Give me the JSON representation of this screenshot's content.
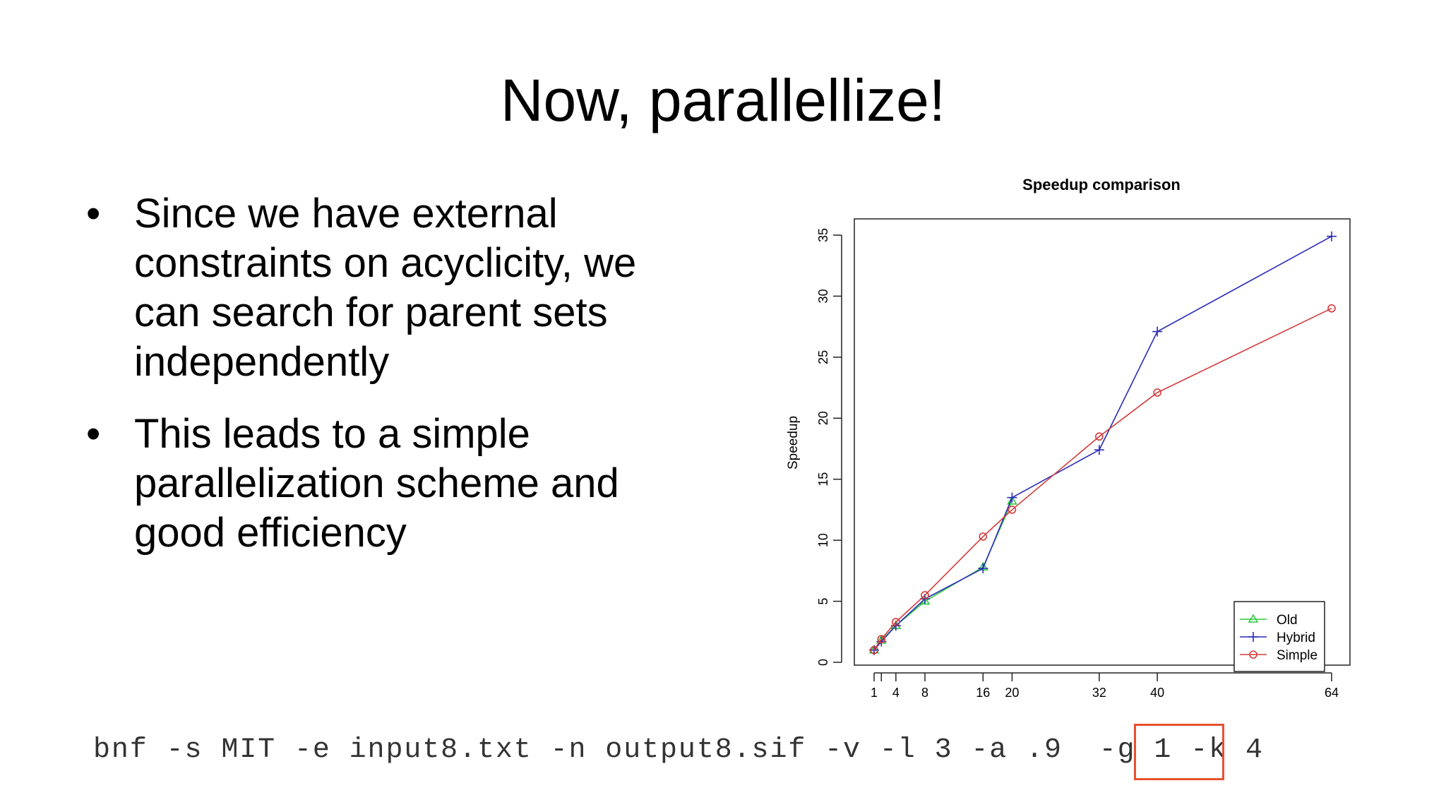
{
  "slide": {
    "title": "Now, parallellize!",
    "bullets": [
      "Since we have external constraints on acyclicity, we can search for parent sets independently",
      "This leads to a  simple parallelization scheme and good efficiency"
    ],
    "bullet_glyph": "•",
    "command": {
      "text": "bnf -s MIT -e input8.txt -n output8.sif -v -l 3 -a .9  -g 1 -k 4",
      "highlighted_part": "-k 4",
      "highlight_color": "#e8512f"
    }
  },
  "chart_data": {
    "type": "line",
    "title": "Speedup comparison",
    "xlabel": "",
    "ylabel": "Speedup",
    "x_ticks": [
      1,
      4,
      8,
      16,
      20,
      32,
      40,
      64
    ],
    "y_ticks": [
      0,
      5,
      10,
      15,
      20,
      25,
      30,
      35
    ],
    "xlim": [
      1,
      64
    ],
    "ylim": [
      0,
      35
    ],
    "grid": false,
    "legend_position": "bottom-right",
    "series": [
      {
        "name": "Old",
        "color": "#2ecc40",
        "marker": "triangle",
        "x": [
          1,
          2,
          4,
          8,
          16,
          20
        ],
        "y": [
          1.0,
          1.8,
          3.0,
          5.0,
          7.8,
          13.2
        ]
      },
      {
        "name": "Hybrid",
        "color": "#2a2ab8",
        "marker": "plus",
        "x": [
          1,
          2,
          4,
          8,
          16,
          20,
          32,
          40,
          64
        ],
        "y": [
          1.0,
          1.7,
          3.0,
          5.2,
          7.7,
          13.5,
          17.4,
          27.1,
          34.9
        ]
      },
      {
        "name": "Simple",
        "color": "#d23a3a",
        "marker": "circle",
        "x": [
          1,
          2,
          4,
          8,
          16,
          20,
          32,
          40,
          64
        ],
        "y": [
          1.0,
          1.9,
          3.3,
          5.5,
          10.3,
          12.5,
          18.5,
          22.1,
          29.0
        ]
      }
    ]
  }
}
